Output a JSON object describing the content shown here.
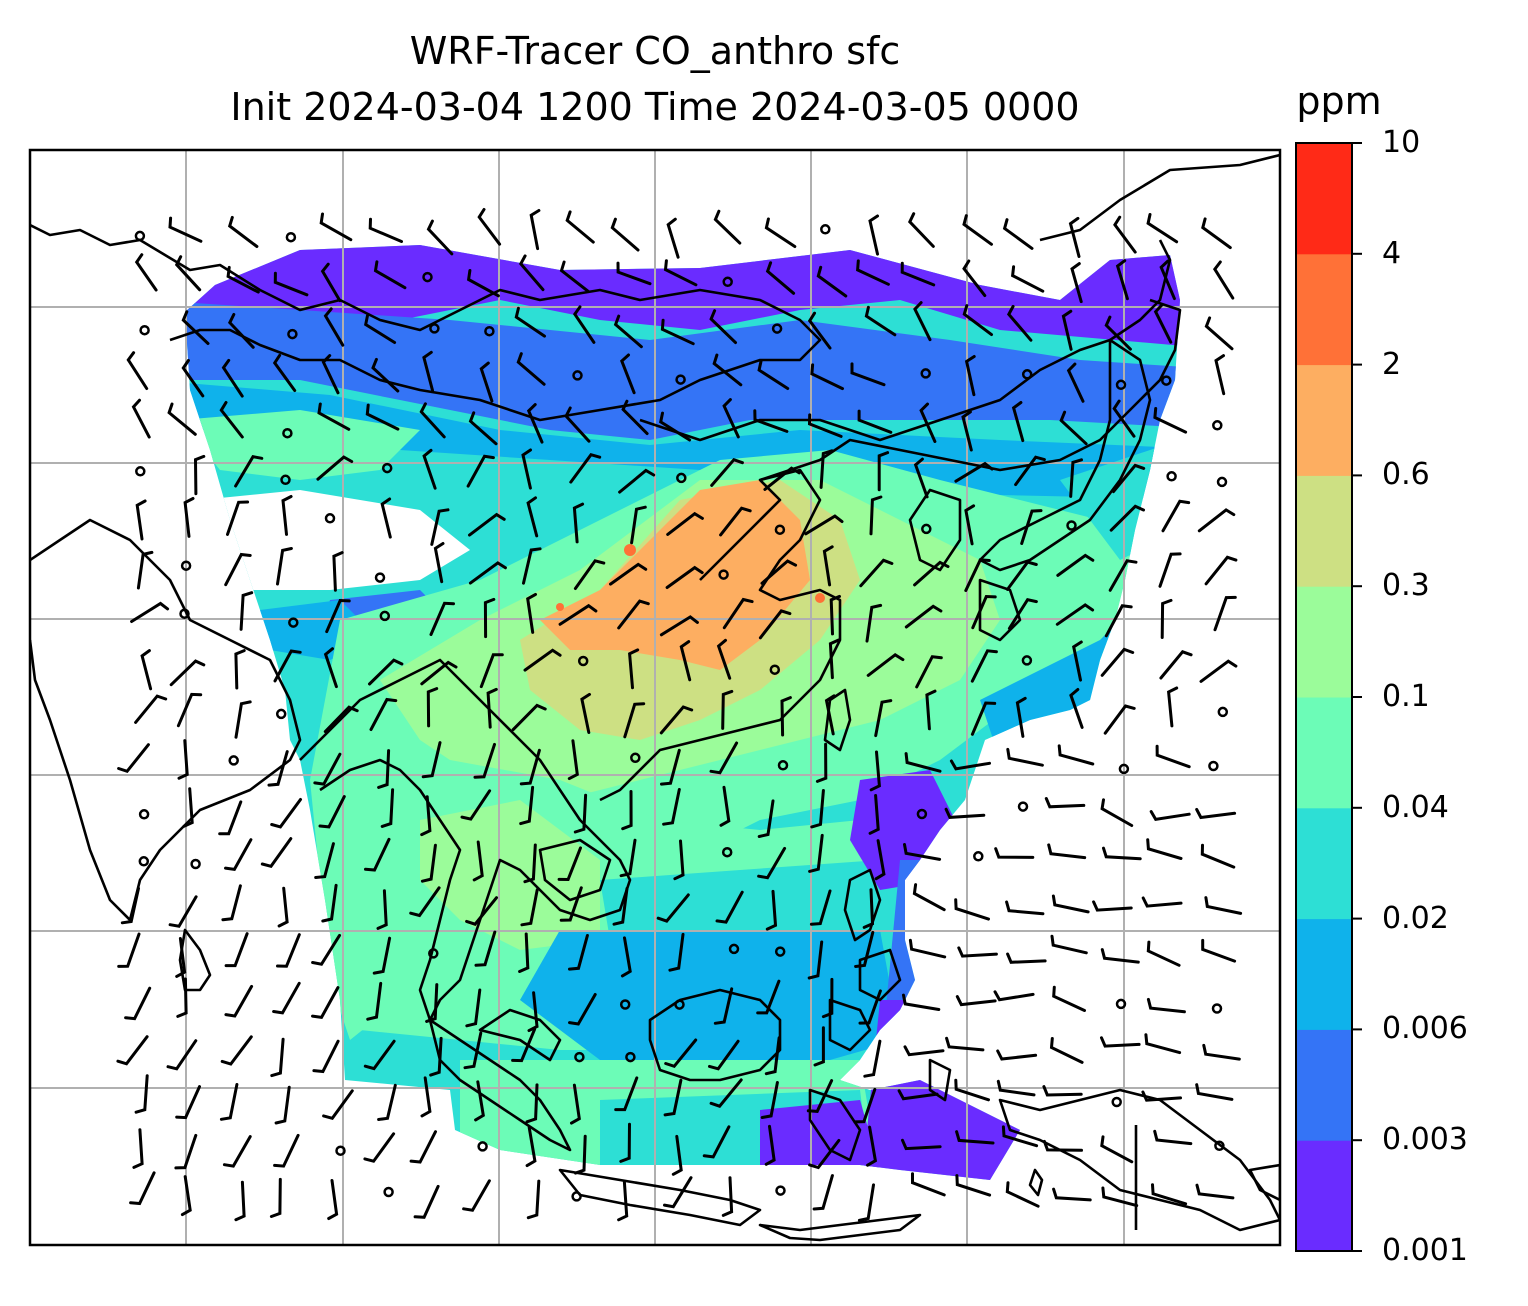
{
  "title": {
    "line1": "WRF-Tracer CO_anthro sfc",
    "line2": "Init 2024-03-04 1200 Time 2024-03-05 0000"
  },
  "colorbar": {
    "unit": "ppm",
    "ticks": [
      "0.001",
      "0.003",
      "0.006",
      "0.02",
      "0.04",
      "0.1",
      "0.3",
      "0.6",
      "2",
      "4",
      "10"
    ],
    "colors": [
      "#6a2cff",
      "#3474f6",
      "#0fb2eb",
      "#2ddfd5",
      "#6cfcb7",
      "#9bfc9a",
      "#cde083",
      "#fdae61",
      "#ff7137",
      "#ff2a17"
    ]
  },
  "map": {
    "background": "#ffffff",
    "coastline_color": "#000000",
    "gridline_color": "#b0b0b0"
  }
}
